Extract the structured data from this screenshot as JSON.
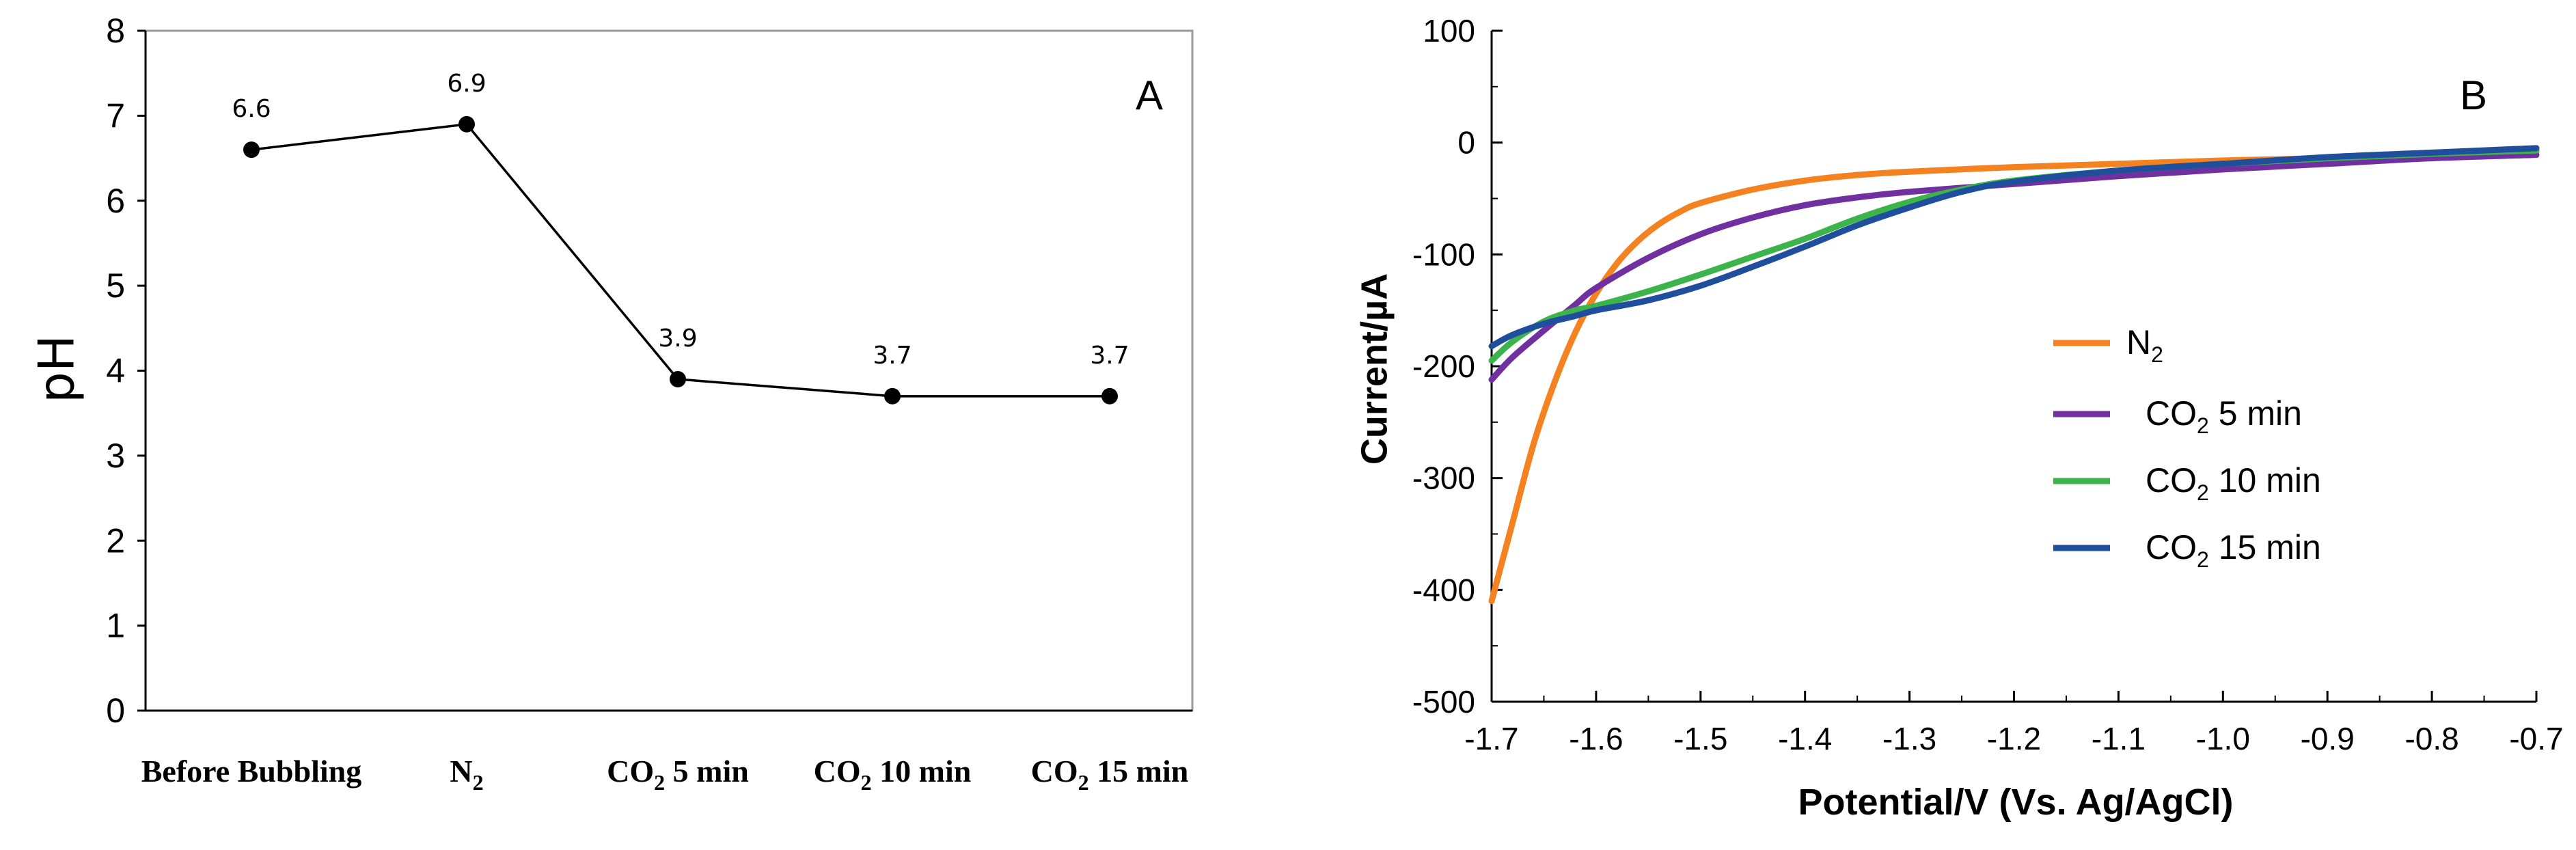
{
  "chart_data": [
    {
      "panel_label": "A",
      "type": "line",
      "ylabel": "pH",
      "ylim": [
        0,
        8
      ],
      "yticks": [
        "0",
        "1",
        "2",
        "3",
        "4",
        "5",
        "6",
        "7",
        "8"
      ],
      "categories": [
        {
          "main": "Before Bubbling",
          "sub": "",
          "rest": ""
        },
        {
          "main": "N",
          "sub": "2",
          "rest": ""
        },
        {
          "main": "CO",
          "sub": "2",
          "rest": " 5 min"
        },
        {
          "main": "CO",
          "sub": "2",
          "rest": " 10 min"
        },
        {
          "main": "CO",
          "sub": "2",
          "rest": " 15 min"
        }
      ],
      "values": [
        6.6,
        6.9,
        3.9,
        3.7,
        3.7
      ],
      "data_labels": [
        "6.6",
        "6.9",
        "3.9",
        "3.7",
        "3.7"
      ],
      "grid": false,
      "line_color": "#000000"
    },
    {
      "panel_label": "B",
      "type": "line",
      "xlabel": "Potential/V (Vs. Ag/AgCl)",
      "ylabel": "Current/µA",
      "xlim": [
        -1.7,
        -0.7
      ],
      "ylim": [
        -500,
        100
      ],
      "xticks": [
        "-1.7",
        "-1.6",
        "-1.5",
        "-1.4",
        "-1.3",
        "-1.2",
        "-1.1",
        "-1.0",
        "-0.9",
        "-0.8",
        "-0.7"
      ],
      "yticks": [
        "-500",
        "-400",
        "-300",
        "-200",
        "-100",
        "0",
        "100"
      ],
      "grid": false,
      "legend_position": "center-right",
      "series": [
        {
          "name": "N",
          "sub": "2",
          "rest": "",
          "color": "#F58220",
          "x": [
            -1.7,
            -1.68,
            -1.66,
            -1.64,
            -1.62,
            -1.6,
            -1.58,
            -1.56,
            -1.54,
            -1.52,
            -1.5,
            -1.45,
            -1.4,
            -1.35,
            -1.3,
            -1.2,
            -1.1,
            -1.0,
            -0.9,
            -0.8,
            -0.7
          ],
          "y": [
            -410,
            -340,
            -270,
            -215,
            -170,
            -135,
            -108,
            -88,
            -73,
            -62,
            -54,
            -42,
            -34,
            -29,
            -26,
            -22,
            -19,
            -16,
            -14,
            -11,
            -8
          ]
        },
        {
          "name": "CO",
          "sub": "2",
          "rest": " 5 min",
          "color": "#7030A0",
          "x": [
            -1.7,
            -1.68,
            -1.65,
            -1.62,
            -1.6,
            -1.55,
            -1.5,
            -1.45,
            -1.4,
            -1.35,
            -1.3,
            -1.2,
            -1.1,
            -1.0,
            -0.9,
            -0.8,
            -0.7
          ],
          "y": [
            -212,
            -192,
            -168,
            -145,
            -130,
            -103,
            -82,
            -67,
            -56,
            -49,
            -44,
            -37,
            -30,
            -24,
            -19,
            -14,
            -11
          ]
        },
        {
          "name": "CO",
          "sub": "2",
          "rest": " 10 min",
          "color": "#3CB44B",
          "x": [
            -1.7,
            -1.68,
            -1.65,
            -1.62,
            -1.6,
            -1.55,
            -1.5,
            -1.45,
            -1.4,
            -1.35,
            -1.3,
            -1.25,
            -1.2,
            -1.1,
            -1.0,
            -0.9,
            -0.8,
            -0.7
          ],
          "y": [
            -195,
            -178,
            -160,
            -150,
            -146,
            -133,
            -118,
            -102,
            -86,
            -68,
            -53,
            -42,
            -34,
            -25,
            -19,
            -14,
            -10,
            -7
          ]
        },
        {
          "name": "CO",
          "sub": "2",
          "rest": " 15 min",
          "color": "#1F4E9C",
          "x": [
            -1.7,
            -1.68,
            -1.65,
            -1.62,
            -1.6,
            -1.55,
            -1.5,
            -1.45,
            -1.4,
            -1.35,
            -1.3,
            -1.25,
            -1.2,
            -1.1,
            -1.0,
            -0.9,
            -0.8,
            -0.7
          ],
          "y": [
            -182,
            -172,
            -162,
            -155,
            -150,
            -141,
            -128,
            -111,
            -93,
            -74,
            -58,
            -44,
            -35,
            -25,
            -19,
            -13,
            -9,
            -5
          ]
        }
      ]
    }
  ]
}
